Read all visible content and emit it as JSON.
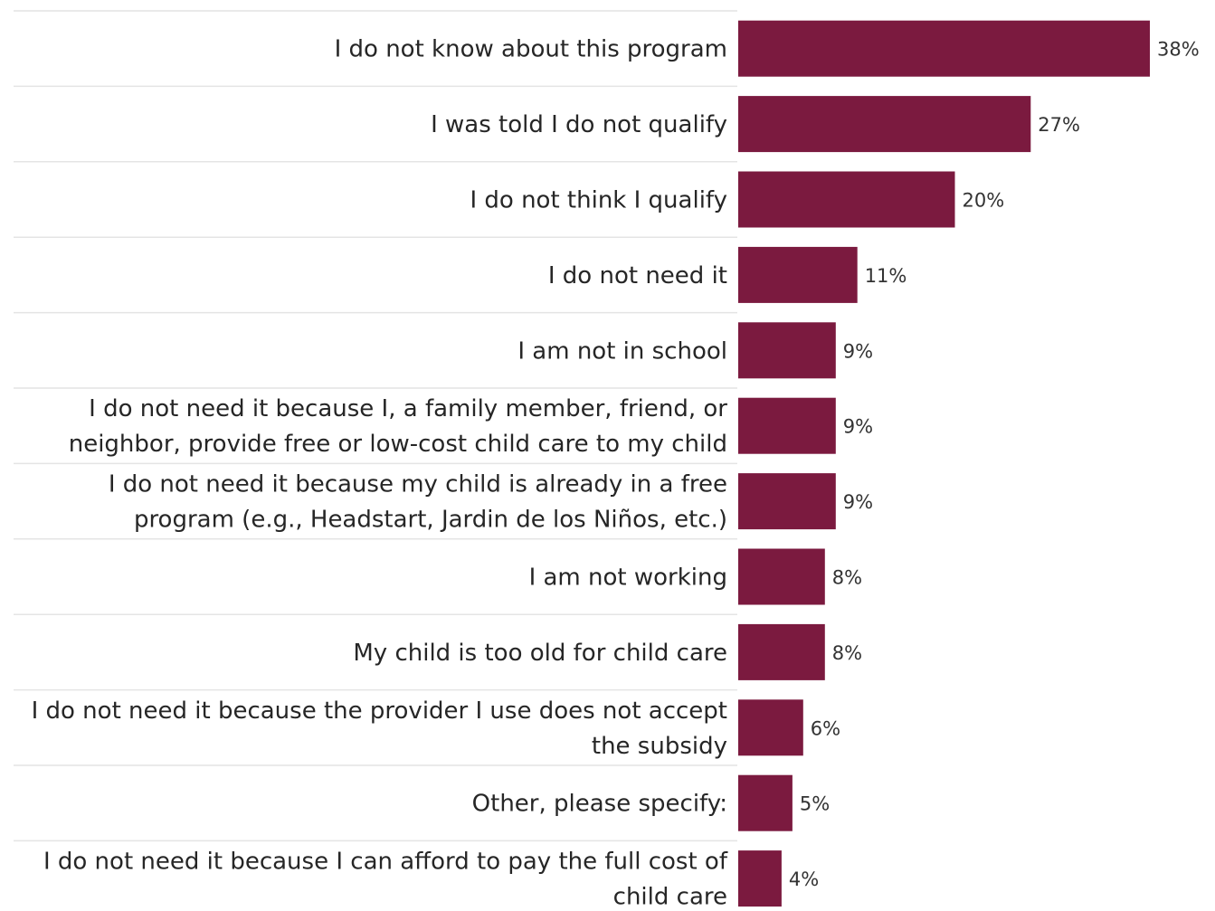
{
  "chart_data": {
    "type": "bar",
    "orientation": "horizontal",
    "categories": [
      [
        "I do not know about this program"
      ],
      [
        "I was told I do not qualify"
      ],
      [
        "I do not think I qualify"
      ],
      [
        "I do not need it"
      ],
      [
        "I am not in school"
      ],
      [
        "I do not need it because I, a family member, friend, or",
        "neighbor, provide free or low-cost child care to my child"
      ],
      [
        "I do not need it because my child is already in a free",
        "program (e.g., Headstart, Jardin de los Niños, etc.)"
      ],
      [
        "I am not working"
      ],
      [
        "My child is too old for child care"
      ],
      [
        "I do not need it because the provider I use does not accept",
        "the subsidy"
      ],
      [
        "Other, please specify:"
      ],
      [
        "I do not need it because I can afford to pay the full cost of",
        "child care"
      ]
    ],
    "values": [
      38,
      27,
      20,
      11,
      9,
      9,
      9,
      8,
      8,
      6,
      5,
      4
    ],
    "value_labels": [
      "38%",
      "27%",
      "20%",
      "11%",
      "9%",
      "9%",
      "9%",
      "8%",
      "8%",
      "6%",
      "5%",
      "4%"
    ],
    "unit": "%",
    "bar_color": "#7b1a3f",
    "grid": false,
    "legend": "none",
    "xlim": [
      0,
      38
    ]
  }
}
